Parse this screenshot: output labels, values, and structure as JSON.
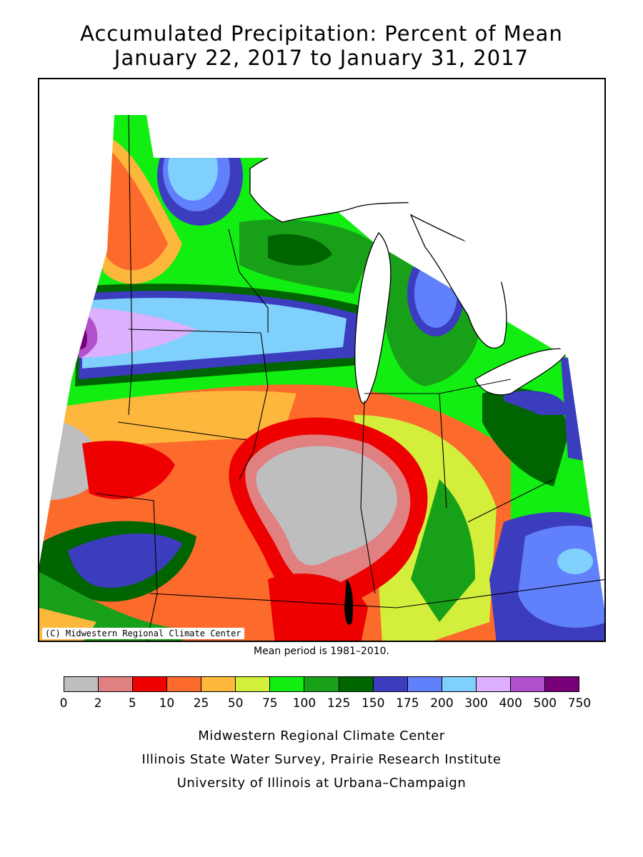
{
  "title": {
    "line1": "Accumulated Precipitation: Percent of Mean",
    "line2": "January 22, 2017 to January 31, 2017"
  },
  "map": {
    "copyright": "(C) Midwestern Regional Climate Center",
    "mean_period": "Mean period is 1981–2010."
  },
  "legend": {
    "colors": [
      "#bebebe",
      "#e08080",
      "#ee0000",
      "#fc6a2c",
      "#fcb73c",
      "#d4ee3c",
      "#12ee12",
      "#18a018",
      "#006400",
      "#3c3cbe",
      "#6080fc",
      "#7fd0fc",
      "#dcb0fc",
      "#b050cc",
      "#780078"
    ],
    "ticks": [
      "0",
      "2",
      "5",
      "10",
      "25",
      "50",
      "75",
      "100",
      "125",
      "150",
      "175",
      "200",
      "300",
      "400",
      "500",
      "750"
    ]
  },
  "footer": {
    "line1": "Midwestern Regional Climate Center",
    "line2": "Illinois State Water Survey, Prairie Research Institute",
    "line3": "University of Illinois at Urbana–Champaign"
  }
}
